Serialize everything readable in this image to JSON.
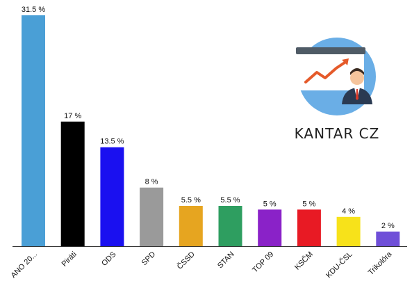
{
  "chart_data": {
    "type": "bar",
    "categories": [
      "ANO 20...",
      "Piráti",
      "ODS",
      "SPD",
      "ČSSD",
      "STAN",
      "TOP 09",
      "KSČM",
      "KDU-ČSL",
      "Trikolóra"
    ],
    "values": [
      31.5,
      17,
      13.5,
      8,
      5.5,
      5.5,
      5,
      5,
      4,
      2
    ],
    "value_labels": [
      "31.5 %",
      "17 %",
      "13.5 %",
      "8 %",
      "5.5 %",
      "5.5 %",
      "5 %",
      "5 %",
      "4 %",
      "2 %"
    ],
    "colors": [
      "#4a9fd6",
      "#000000",
      "#1a10f0",
      "#9a9a9a",
      "#e6a520",
      "#2e9e60",
      "#8a22c8",
      "#e81a24",
      "#f7e21a",
      "#6f4fd8"
    ],
    "ylim": [
      0,
      31.5
    ],
    "grid": false,
    "legend": "none",
    "title": "",
    "xlabel": "",
    "ylabel": ""
  },
  "logo": {
    "text": "KANTAR CZ",
    "icon": "presentation-board-businessman-icon",
    "circle_color": "#6aaee6"
  }
}
